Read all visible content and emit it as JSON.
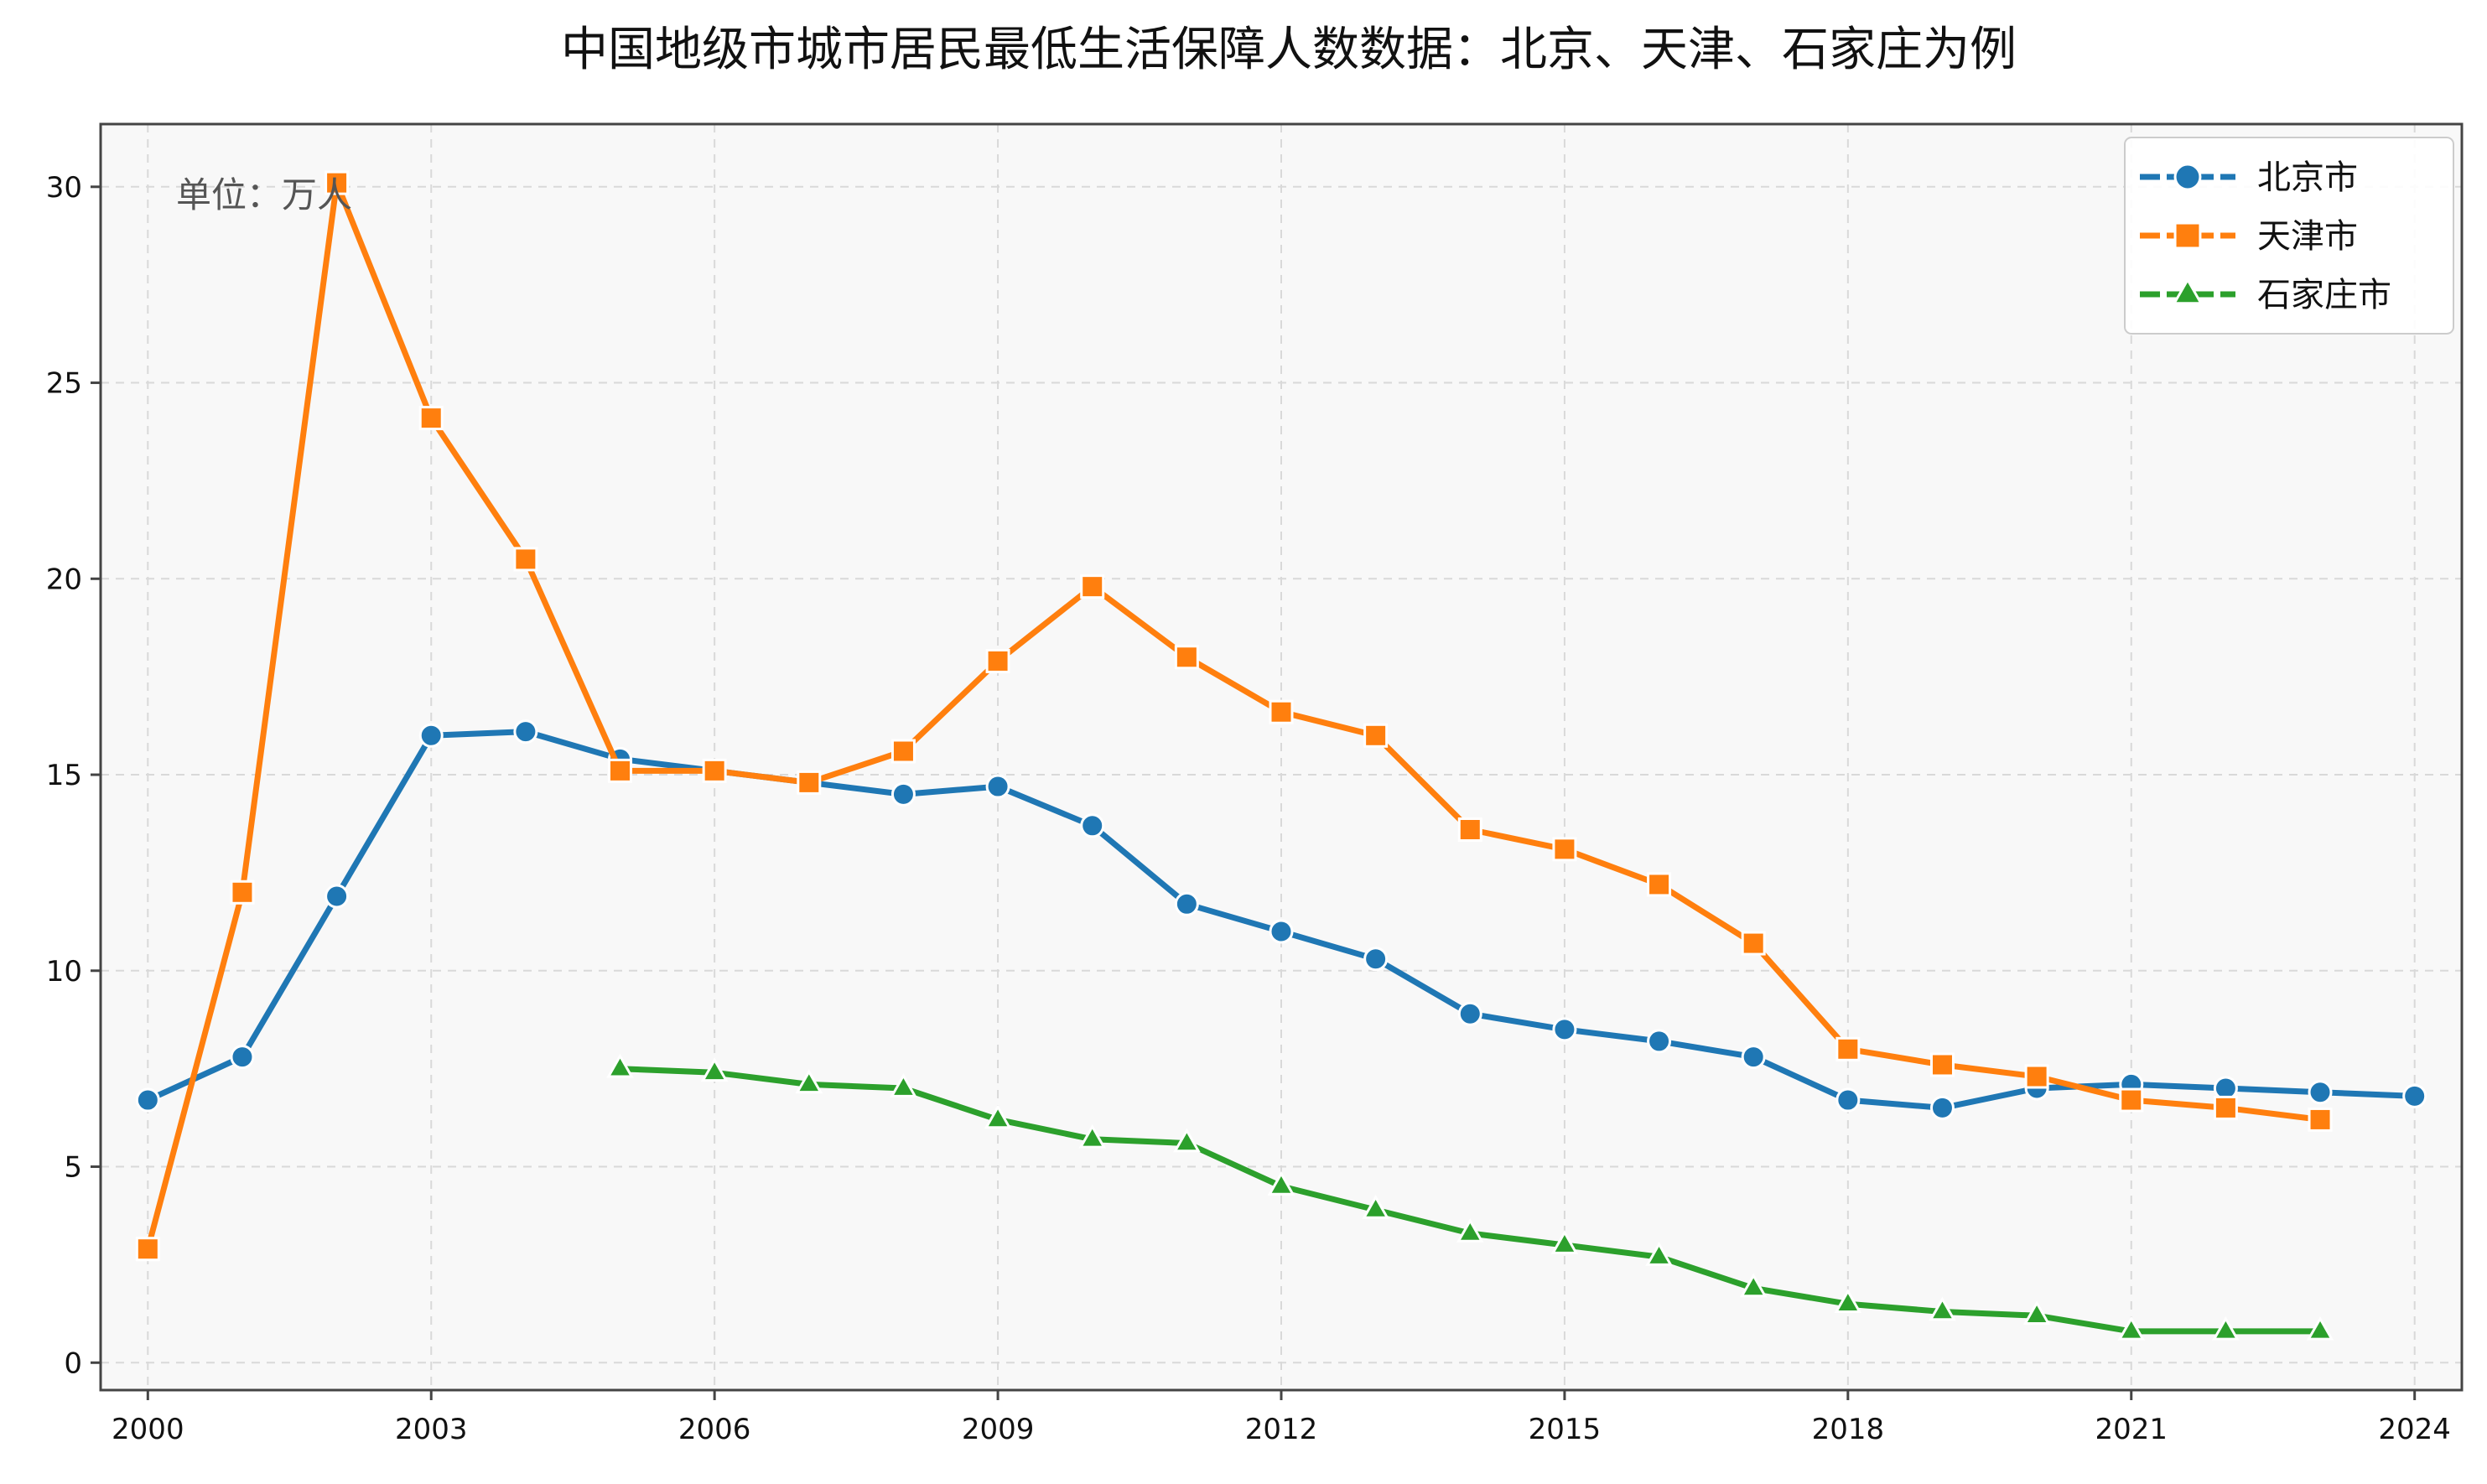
{
  "chart_data": {
    "type": "line",
    "title": "中国地级市城市居民最低生活保障人数数据：北京、天津、石家庄为例",
    "annotation": "单位：万人",
    "xlabel": "",
    "ylabel": "",
    "xlim": [
      1999.5,
      2024.5
    ],
    "ylim": [
      -0.7,
      31.6
    ],
    "x_ticks": [
      2000,
      2003,
      2006,
      2009,
      2012,
      2015,
      2018,
      2021,
      2024
    ],
    "y_ticks": [
      0,
      5,
      10,
      15,
      20,
      25,
      30
    ],
    "grid": true,
    "legend_position": "top-right",
    "series": [
      {
        "name": "北京市",
        "color": "#1f77b4",
        "marker": "circle",
        "points": [
          [
            2000,
            6.7
          ],
          [
            2001,
            7.8
          ],
          [
            2002,
            11.9
          ],
          [
            2003,
            16.0
          ],
          [
            2004,
            16.1
          ],
          [
            2005,
            15.4
          ],
          [
            2006,
            15.1
          ],
          [
            2007,
            14.8
          ],
          [
            2008,
            14.5
          ],
          [
            2009,
            14.7
          ],
          [
            2010,
            13.7
          ],
          [
            2011,
            11.7
          ],
          [
            2012,
            11.0
          ],
          [
            2013,
            10.3
          ],
          [
            2014,
            8.9
          ],
          [
            2015,
            8.5
          ],
          [
            2016,
            8.2
          ],
          [
            2017,
            7.8
          ],
          [
            2018,
            6.7
          ],
          [
            2019,
            6.5
          ],
          [
            2020,
            7.0
          ],
          [
            2021,
            7.1
          ],
          [
            2022,
            7.0
          ],
          [
            2023,
            6.9
          ],
          [
            2024,
            6.8
          ]
        ]
      },
      {
        "name": "天津市",
        "color": "#ff7f0e",
        "marker": "square",
        "points": [
          [
            2000,
            2.9
          ],
          [
            2001,
            12.0
          ],
          [
            2002,
            30.1
          ],
          [
            2003,
            24.1
          ],
          [
            2004,
            20.5
          ],
          [
            2005,
            15.1
          ],
          [
            2006,
            15.1
          ],
          [
            2007,
            14.8
          ],
          [
            2008,
            15.6
          ],
          [
            2009,
            17.9
          ],
          [
            2010,
            19.8
          ],
          [
            2011,
            18.0
          ],
          [
            2012,
            16.6
          ],
          [
            2013,
            16.0
          ],
          [
            2014,
            13.6
          ],
          [
            2015,
            13.1
          ],
          [
            2016,
            12.2
          ],
          [
            2017,
            10.7
          ],
          [
            2018,
            8.0
          ],
          [
            2019,
            7.6
          ],
          [
            2020,
            7.3
          ],
          [
            2021,
            6.7
          ],
          [
            2022,
            6.5
          ],
          [
            2023,
            6.2
          ]
        ]
      },
      {
        "name": "石家庄市",
        "color": "#2ca02c",
        "marker": "triangle",
        "points": [
          [
            2005,
            7.5
          ],
          [
            2006,
            7.4
          ],
          [
            2007,
            7.1
          ],
          [
            2008,
            7.0
          ],
          [
            2009,
            6.2
          ],
          [
            2010,
            5.7
          ],
          [
            2011,
            5.6
          ],
          [
            2012,
            4.5
          ],
          [
            2013,
            3.9
          ],
          [
            2014,
            3.3
          ],
          [
            2015,
            3.0
          ],
          [
            2016,
            2.7
          ],
          [
            2017,
            1.9
          ],
          [
            2018,
            1.5
          ],
          [
            2019,
            1.3
          ],
          [
            2020,
            1.2
          ],
          [
            2021,
            0.8
          ],
          [
            2022,
            0.8
          ],
          [
            2023,
            0.8
          ]
        ]
      }
    ]
  }
}
